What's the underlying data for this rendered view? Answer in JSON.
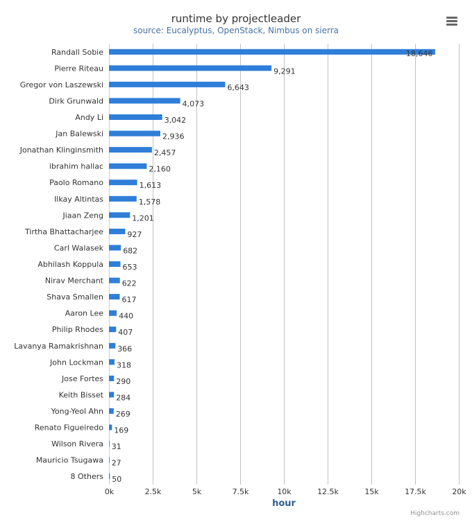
{
  "title": "runtime by projectleader",
  "subtitle": "source: Eucalyptus, OpenStack, Nimbus on sierra",
  "credits": "Highcharts.com",
  "menu_icon": "hamburger-menu-icon",
  "colors": {
    "bar": "#2f7ed8",
    "grid": "#c0c0c0",
    "axis": "#c0d0e0",
    "title": "#333333",
    "subtitle": "#4572A7"
  },
  "chart_data": {
    "type": "bar",
    "orientation": "horizontal",
    "title": "runtime by projectleader",
    "subtitle": "source: Eucalyptus, OpenStack, Nimbus on sierra",
    "xlabel": "",
    "ylabel": "hour",
    "categories": [
      "Randall Sobie",
      "Pierre Riteau",
      "Gregor von Laszewski",
      "Dirk Grunwald",
      "Andy Li",
      "Jan Balewski",
      "Jonathan Klinginsmith",
      "ibrahim hallac",
      "Paolo Romano",
      "Ilkay Altintas",
      "Jiaan Zeng",
      "Tirtha Bhattacharjee",
      "Carl Walasek",
      "Abhilash Koppula",
      "Nirav Merchant",
      "Shava Smallen",
      "Aaron Lee",
      "Philip Rhodes",
      "Lavanya Ramakrishnan",
      "John Lockman",
      "Jose Fortes",
      "Keith Bisset",
      "Yong-Yeol Ahn",
      "Renato Figueiredo",
      "Wilson Rivera",
      "Mauricio Tsugawa",
      "8 Others"
    ],
    "values": [
      18646,
      9291,
      6643,
      4073,
      3042,
      2936,
      2457,
      2160,
      1613,
      1578,
      1201,
      927,
      682,
      653,
      622,
      617,
      440,
      407,
      366,
      318,
      290,
      284,
      269,
      169,
      31,
      27,
      50
    ],
    "value_labels": [
      "18,646",
      "9,291",
      "6,643",
      "4,073",
      "3,042",
      "2,936",
      "2,457",
      "2,160",
      "1,613",
      "1,578",
      "1,201",
      "927",
      "682",
      "653",
      "622",
      "617",
      "440",
      "407",
      "366",
      "318",
      "290",
      "284",
      "269",
      "169",
      "31",
      "27",
      "50"
    ],
    "xlim": [
      0,
      20000
    ],
    "ticks": [
      0,
      2500,
      5000,
      7500,
      10000,
      12500,
      15000,
      17500,
      20000
    ],
    "tick_labels": [
      "0k",
      "2.5k",
      "5k",
      "7.5k",
      "10k",
      "12.5k",
      "15k",
      "17.5k",
      "20k"
    ],
    "grid": true,
    "legend": "none"
  }
}
